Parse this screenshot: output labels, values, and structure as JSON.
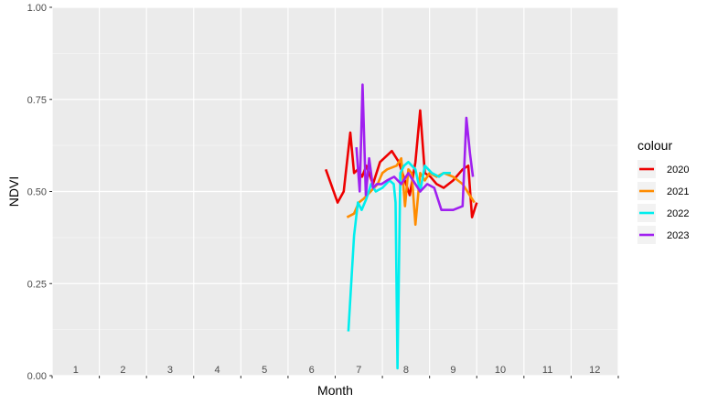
{
  "chart_data": {
    "type": "line",
    "title": "",
    "xlabel": "Month",
    "ylabel": "NDVI",
    "xlim": [
      0,
      12
    ],
    "ylim": [
      0,
      1
    ],
    "y_ticks": [
      0.0,
      0.25,
      0.5,
      0.75,
      1.0
    ],
    "y_tick_labels": [
      "0.00",
      "0.25",
      "0.50",
      "0.75",
      "1.00"
    ],
    "x_tick_labels": [
      "1",
      "2",
      "3",
      "4",
      "5",
      "6",
      "7",
      "8",
      "9",
      "10",
      "11",
      "12"
    ],
    "grid": true,
    "legend": {
      "title": "colour",
      "position": "right"
    },
    "series": [
      {
        "name": "2020",
        "color": "#ee0000",
        "x": [
          5.8,
          6.05,
          6.18,
          6.32,
          6.4,
          6.48,
          6.57,
          6.66,
          6.8,
          6.95,
          7.2,
          7.35,
          7.5,
          7.58,
          7.7,
          7.8,
          7.9,
          8.02,
          8.15,
          8.3,
          8.5,
          8.7,
          8.82,
          8.9,
          9.0
        ],
        "y": [
          0.56,
          0.47,
          0.5,
          0.66,
          0.55,
          0.56,
          0.54,
          0.57,
          0.52,
          0.58,
          0.61,
          0.58,
          0.52,
          0.49,
          0.58,
          0.72,
          0.55,
          0.54,
          0.52,
          0.51,
          0.53,
          0.56,
          0.57,
          0.43,
          0.47
        ]
      },
      {
        "name": "2021",
        "color": "#ff8c00",
        "x": [
          6.25,
          6.4,
          6.5,
          6.6,
          6.75,
          6.9,
          7.0,
          7.1,
          7.3,
          7.4,
          7.48,
          7.55,
          7.62,
          7.7,
          7.8,
          7.9,
          8.0,
          8.15,
          8.3,
          8.5,
          8.7,
          8.85,
          8.95
        ],
        "y": [
          0.43,
          0.44,
          0.47,
          0.48,
          0.5,
          0.52,
          0.55,
          0.56,
          0.57,
          0.59,
          0.46,
          0.56,
          0.55,
          0.41,
          0.55,
          0.53,
          0.55,
          0.54,
          0.55,
          0.54,
          0.52,
          0.49,
          0.47
        ]
      },
      {
        "name": "2022",
        "color": "#00eeee",
        "x": [
          6.28,
          6.4,
          6.48,
          6.56,
          6.66,
          6.76,
          6.86,
          7.0,
          7.15,
          7.24,
          7.28,
          7.32,
          7.38,
          7.46,
          7.55,
          7.7,
          7.8,
          7.9,
          8.05,
          8.2,
          8.3,
          8.45
        ],
        "y": [
          0.12,
          0.38,
          0.47,
          0.45,
          0.48,
          0.52,
          0.5,
          0.51,
          0.53,
          0.52,
          0.47,
          0.02,
          0.55,
          0.57,
          0.58,
          0.56,
          0.5,
          0.57,
          0.55,
          0.54,
          0.55,
          0.55
        ]
      },
      {
        "name": "2023",
        "color": "#a020f0",
        "x": [
          6.45,
          6.52,
          6.58,
          6.65,
          6.72,
          6.8,
          6.88,
          6.98,
          7.1,
          7.25,
          7.4,
          7.55,
          7.7,
          7.8,
          7.95,
          8.1,
          8.25,
          8.5,
          8.7,
          8.78,
          8.86,
          8.92
        ],
        "y": [
          0.62,
          0.5,
          0.79,
          0.49,
          0.59,
          0.51,
          0.52,
          0.52,
          0.53,
          0.54,
          0.52,
          0.55,
          0.52,
          0.5,
          0.52,
          0.51,
          0.45,
          0.45,
          0.46,
          0.7,
          0.6,
          0.54
        ]
      }
    ]
  }
}
